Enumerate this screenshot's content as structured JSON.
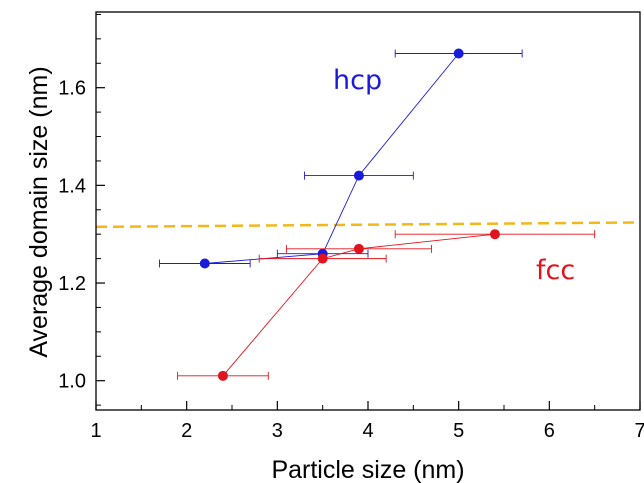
{
  "chart_data": {
    "type": "scatter",
    "xlabel": "Particle size (nm)",
    "ylabel": "Average domain size (nm)",
    "xlim": [
      1,
      7
    ],
    "ylim": [
      0.94,
      1.755
    ],
    "xticks": [
      1,
      2,
      3,
      4,
      5,
      6,
      7
    ],
    "yticks": [
      1.0,
      1.2,
      1.4,
      1.6
    ],
    "x_tick_labels": [
      "1",
      "2",
      "3",
      "4",
      "5",
      "6",
      "7"
    ],
    "y_tick_labels": [
      "1.0",
      "1.2",
      "1.4",
      "1.6"
    ],
    "grid": false,
    "series": [
      {
        "name": "hcp",
        "color": "#1a1adc",
        "points": [
          {
            "x": 2.2,
            "y": 1.24,
            "xerr": 0.5
          },
          {
            "x": 3.5,
            "y": 1.26,
            "xerr": 0.5
          },
          {
            "x": 3.9,
            "y": 1.42,
            "xerr": 0.6
          },
          {
            "x": 5.0,
            "y": 1.67,
            "xerr": 0.7
          }
        ]
      },
      {
        "name": "fcc",
        "color": "#e0141e",
        "points": [
          {
            "x": 2.4,
            "y": 1.01,
            "xerr": 0.5
          },
          {
            "x": 3.5,
            "y": 1.25,
            "xerr": 0.7
          },
          {
            "x": 3.9,
            "y": 1.27,
            "xerr": 0.8
          },
          {
            "x": 5.4,
            "y": 1.3,
            "xerr": 1.1
          }
        ]
      }
    ],
    "reference_line": {
      "style": "dashed",
      "color": "#f2b81a",
      "points": [
        {
          "x": 1.0,
          "y": 1.315
        },
        {
          "x": 7.0,
          "y": 1.324
        }
      ]
    }
  }
}
